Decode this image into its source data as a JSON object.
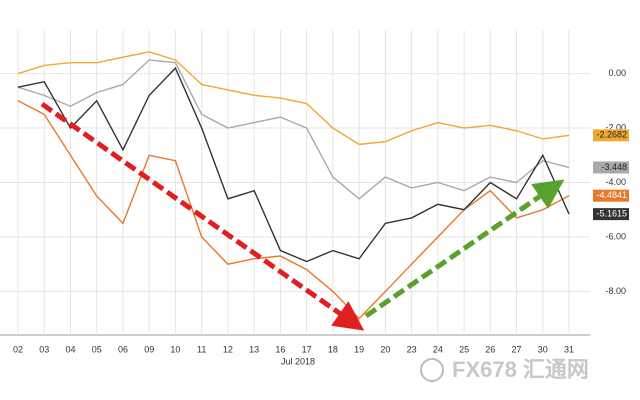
{
  "chart_data": {
    "type": "line",
    "categories": [
      "02",
      "03",
      "04",
      "05",
      "06",
      "09",
      "10",
      "11",
      "12",
      "13",
      "16",
      "17",
      "18",
      "19",
      "20",
      "23",
      "24",
      "25",
      "26",
      "27",
      "30",
      "31"
    ],
    "x_label": "Jul 2018",
    "series": [
      {
        "color": "#f0a830",
        "values": [
          0.0,
          0.3,
          0.4,
          0.4,
          0.6,
          0.8,
          0.5,
          -0.4,
          -0.6,
          -0.8,
          -0.9,
          -1.1,
          -2.0,
          -2.6,
          -2.5,
          -2.1,
          -1.8,
          -2.0,
          -1.9,
          -2.1,
          -2.4,
          -2.2682
        ]
      },
      {
        "color": "#a9a9a9",
        "values": [
          -0.5,
          -0.8,
          -1.2,
          -0.7,
          -0.4,
          0.5,
          0.4,
          -1.5,
          -2.0,
          -1.8,
          -1.6,
          -2.0,
          -3.8,
          -4.6,
          -3.8,
          -4.2,
          -4.0,
          -4.3,
          -3.8,
          -4.0,
          -3.2,
          -3.448
        ]
      },
      {
        "color": "#e8782a",
        "values": [
          -1.0,
          -1.5,
          -3.0,
          -4.5,
          -5.5,
          -3.0,
          -3.2,
          -6.0,
          -7.0,
          -6.8,
          -6.7,
          -7.2,
          -8.0,
          -9.0,
          -8.0,
          -7.0,
          -6.0,
          -5.0,
          -4.3,
          -5.3,
          -5.0,
          -4.4841
        ]
      },
      {
        "color": "#333333",
        "values": [
          -0.5,
          -0.3,
          -2.0,
          -1.0,
          -2.8,
          -0.8,
          0.2,
          -2.0,
          -4.6,
          -4.3,
          -6.5,
          -6.9,
          -6.5,
          -6.8,
          -5.5,
          -5.3,
          -4.8,
          -5.0,
          -4.0,
          -4.6,
          -3.0,
          -5.1615
        ]
      }
    ],
    "ylim": [
      -9.6,
      1.6
    ],
    "yticks": [
      {
        "value": 0,
        "label": "0.00"
      },
      {
        "value": -2,
        "label": "-2.00"
      },
      {
        "value": -4,
        "label": "-4.00"
      },
      {
        "value": -6,
        "label": "-6.00"
      },
      {
        "value": -8,
        "label": "-8.00"
      }
    ],
    "grid": true,
    "watermark": "FX678 汇通网"
  }
}
